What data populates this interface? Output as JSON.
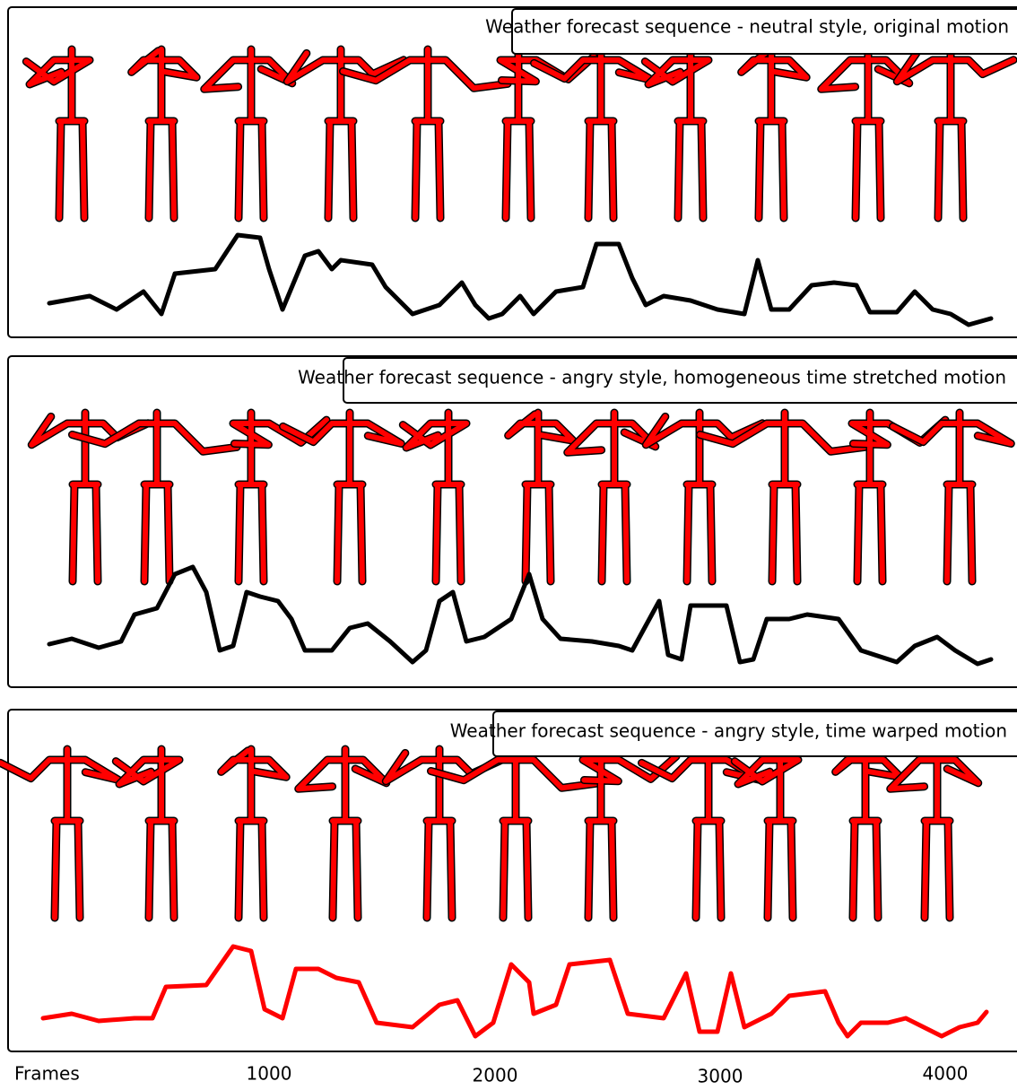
{
  "panels": [
    {
      "title": "Weather forecast sequence - neutral style, original motion"
    },
    {
      "title": "Weather forecast sequence - angry style, homogeneous time stretched motion"
    },
    {
      "title": "Weather forecast sequence - angry style, time warped motion"
    }
  ],
  "axis": {
    "label": "Frames",
    "ticks": [
      "1000",
      "2000",
      "3000",
      "4000"
    ]
  }
}
